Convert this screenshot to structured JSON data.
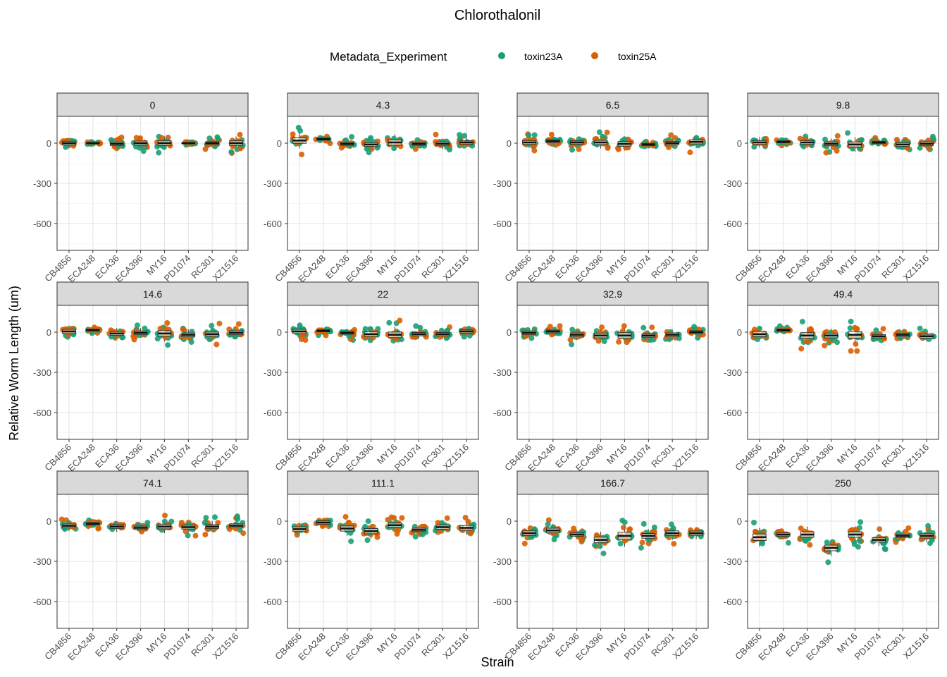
{
  "chart_data": {
    "type": "scatter",
    "subtype": "faceted-boxplot-with-jitter",
    "title": "Chlorothalonil",
    "xlabel": "Strain",
    "ylabel": "Relative Worm Length (um)",
    "ylim": [
      -800,
      200
    ],
    "yticks": [
      0,
      -300,
      -600
    ],
    "ytick_labels": [
      "0",
      "-300",
      "-600"
    ],
    "grid": true,
    "legend": {
      "title": "Metadata_Experiment",
      "position": "top",
      "entries": [
        {
          "label": "toxin23A",
          "color": "#1b9e77"
        },
        {
          "label": "toxin25A",
          "color": "#d95f02"
        }
      ]
    },
    "categories": [
      "CB4856",
      "ECA248",
      "ECA36",
      "ECA396",
      "MY16",
      "PD1074",
      "RC301",
      "XZ1516"
    ],
    "facets": [
      {
        "label": "0",
        "medians": [
          0,
          0,
          -5,
          0,
          0,
          0,
          0,
          0
        ],
        "spread": [
          40,
          15,
          35,
          45,
          50,
          15,
          30,
          50
        ]
      },
      {
        "label": "4.3",
        "medians": [
          20,
          30,
          -5,
          -10,
          5,
          -5,
          -5,
          5
        ],
        "spread": [
          60,
          20,
          30,
          40,
          60,
          30,
          40,
          35
        ]
      },
      {
        "label": "6.5",
        "medians": [
          5,
          15,
          5,
          5,
          -5,
          -10,
          0,
          10
        ],
        "spread": [
          40,
          30,
          35,
          45,
          50,
          25,
          35,
          45
        ]
      },
      {
        "label": "9.8",
        "medians": [
          5,
          10,
          5,
          -5,
          -10,
          5,
          -10,
          -5
        ],
        "spread": [
          40,
          20,
          40,
          40,
          55,
          25,
          40,
          40
        ]
      },
      {
        "label": "14.6",
        "medians": [
          5,
          15,
          -10,
          -5,
          -10,
          -20,
          -15,
          -5
        ],
        "spread": [
          45,
          15,
          40,
          35,
          60,
          40,
          45,
          40
        ]
      },
      {
        "label": "22",
        "medians": [
          5,
          10,
          -5,
          -15,
          -20,
          -15,
          -15,
          5
        ],
        "spread": [
          45,
          20,
          30,
          50,
          60,
          35,
          35,
          35
        ]
      },
      {
        "label": "32.9",
        "medians": [
          -5,
          5,
          -20,
          -25,
          -25,
          -25,
          -20,
          0
        ],
        "spread": [
          35,
          30,
          40,
          50,
          60,
          35,
          40,
          30
        ]
      },
      {
        "label": "49.4",
        "medians": [
          -15,
          15,
          -25,
          -25,
          -20,
          -30,
          -20,
          -30
        ],
        "spread": [
          55,
          20,
          60,
          50,
          70,
          35,
          35,
          40
        ]
      },
      {
        "label": "74.1",
        "medians": [
          -35,
          -20,
          -40,
          -50,
          -40,
          -45,
          -40,
          -35
        ],
        "spread": [
          40,
          30,
          40,
          35,
          50,
          40,
          40,
          40
        ]
      },
      {
        "label": "111.1",
        "medians": [
          -60,
          -10,
          -55,
          -75,
          -30,
          -65,
          -45,
          -50
        ],
        "spread": [
          50,
          35,
          55,
          55,
          45,
          35,
          45,
          50
        ]
      },
      {
        "label": "166.7",
        "medians": [
          -90,
          -70,
          -100,
          -140,
          -110,
          -110,
          -90,
          -90
        ],
        "spread": [
          50,
          50,
          35,
          60,
          80,
          50,
          50,
          45
        ]
      },
      {
        "label": "250",
        "medians": [
          -120,
          -100,
          -100,
          -200,
          -100,
          -140,
          -110,
          -110
        ],
        "spread": [
          70,
          35,
          60,
          60,
          60,
          45,
          35,
          45
        ]
      }
    ]
  }
}
